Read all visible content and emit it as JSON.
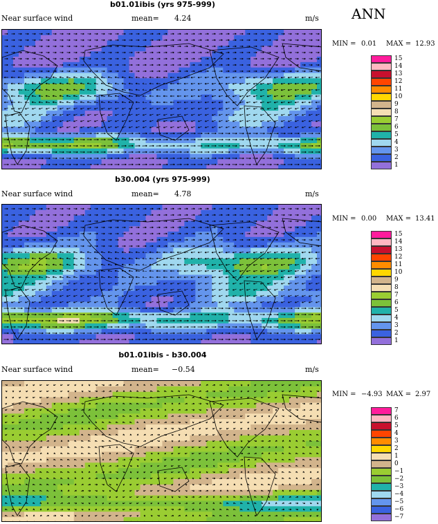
{
  "season": "ANN",
  "panels": [
    {
      "title": "b01.01ibis (yrs 975-999)",
      "variable": "Near surface wind",
      "mean_label": "mean=",
      "mean_value": "4.24",
      "units": "m/s",
      "min_label": "MIN =",
      "min_value": "0.01",
      "max_label": "MAX =",
      "max_value": "12.93",
      "levels": [
        "15",
        "14",
        "13",
        "12",
        "11",
        "10",
        "9",
        "8",
        "7",
        "6",
        "5",
        "4",
        "3",
        "2",
        "1"
      ],
      "colors": [
        "#ff1c9c",
        "#ffb6c1",
        "#c8102e",
        "#ff4500",
        "#ff8c00",
        "#ffd700",
        "#d2b48c",
        "#f5deb3",
        "#9acd32",
        "#7cc13a",
        "#20b2aa",
        "#a0d8ef",
        "#6495ed",
        "#3a62e0",
        "#9370db"
      ],
      "field_type": "speed"
    },
    {
      "title": "b30.004 (yrs 975-999)",
      "variable": "Near surface wind",
      "mean_label": "mean=",
      "mean_value": "4.78",
      "units": "m/s",
      "min_label": "MIN =",
      "min_value": "0.00",
      "max_label": "MAX =",
      "max_value": "13.41",
      "levels": [
        "15",
        "14",
        "13",
        "12",
        "11",
        "10",
        "9",
        "8",
        "7",
        "6",
        "5",
        "4",
        "3",
        "2",
        "1"
      ],
      "colors": [
        "#ff1c9c",
        "#ffb6c1",
        "#c8102e",
        "#ff4500",
        "#ff8c00",
        "#ffd700",
        "#d2b48c",
        "#f5deb3",
        "#9acd32",
        "#7cc13a",
        "#20b2aa",
        "#a0d8ef",
        "#6495ed",
        "#3a62e0",
        "#9370db"
      ],
      "field_type": "speed"
    },
    {
      "title": "b01.01ibis - b30.004",
      "variable": "Near surface wind",
      "mean_label": "mean=",
      "mean_value": "−0.54",
      "units": "m/s",
      "min_label": "MIN =",
      "min_value": "−4.93",
      "max_label": "MAX =",
      "max_value": "2.97",
      "levels": [
        "7",
        "6",
        "5",
        "4",
        "3",
        "2",
        "1",
        "0",
        "−1",
        "−2",
        "−3",
        "−4",
        "−5",
        "−6",
        "−7"
      ],
      "colors": [
        "#ff1c9c",
        "#ffb6c1",
        "#c8102e",
        "#ff4500",
        "#ff8c00",
        "#ffd700",
        "#f5deb3",
        "#d2b48c",
        "#9acd32",
        "#7cc13a",
        "#20b2aa",
        "#a0d8ef",
        "#6495ed",
        "#3a62e0",
        "#9370db"
      ],
      "field_type": "diff"
    }
  ]
}
